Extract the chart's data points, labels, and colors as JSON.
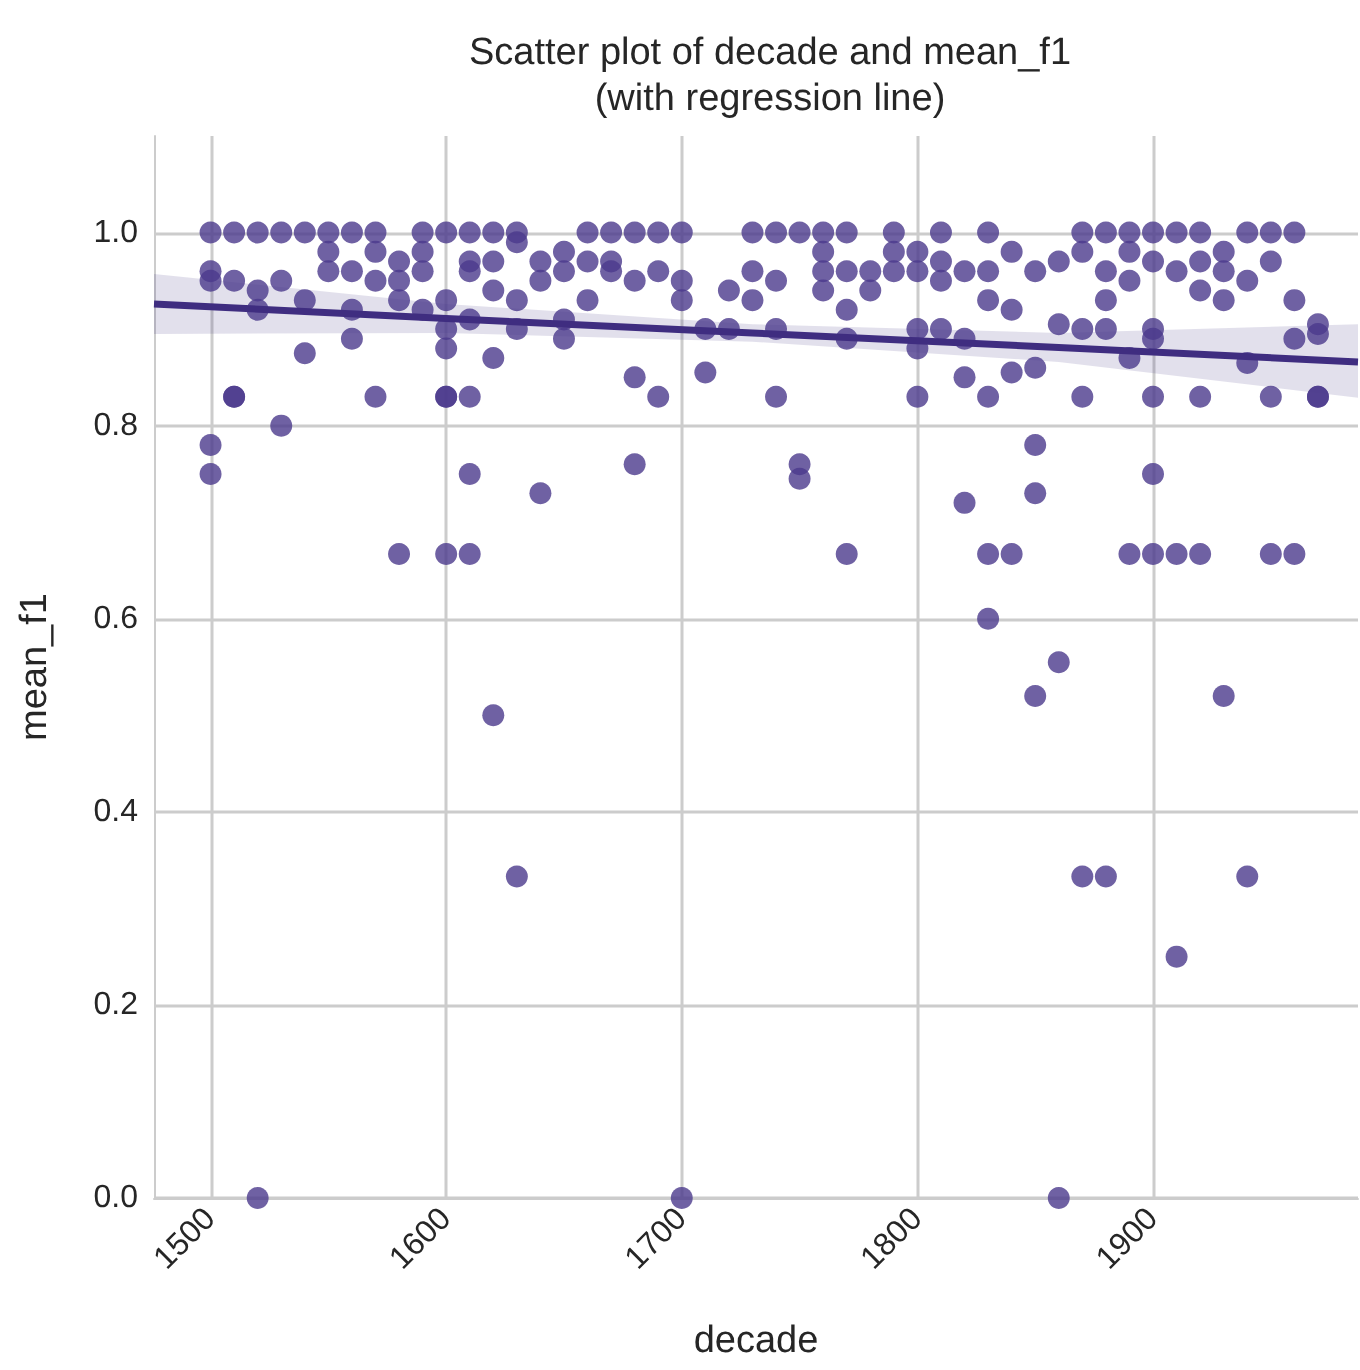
{
  "chart_data": {
    "type": "scatter",
    "title": "Scatter plot of decade and mean_f1\n(with regression line)",
    "xlabel": "decade",
    "ylabel": "mean_f1",
    "xlim": [
      1476,
      1987
    ],
    "ylim": [
      0,
      1.1
    ],
    "xticks": [
      1500,
      1600,
      1700,
      1800,
      1900
    ],
    "yticks": [
      {
        "value": 0,
        "label": "0.0"
      },
      {
        "value": 0.2,
        "label": "0.2"
      },
      {
        "value": 0.4,
        "label": "0.4"
      },
      {
        "value": 0.6,
        "label": "0.6"
      },
      {
        "value": 0.8,
        "label": "0.8"
      },
      {
        "value": 1,
        "label": "1.0"
      }
    ],
    "grid": true,
    "marker": "circle",
    "series": [
      {
        "color": "#4b3a8c",
        "x": [
          1500,
          1500,
          1500,
          1500,
          1500,
          1510,
          1510,
          1510,
          1510,
          1520,
          1520,
          1520,
          1520,
          1530,
          1530,
          1530,
          1540,
          1540,
          1540,
          1550,
          1550,
          1550,
          1560,
          1560,
          1560,
          1560,
          1570,
          1570,
          1570,
          1570,
          1580,
          1580,
          1580,
          1580,
          1590,
          1590,
          1590,
          1590,
          1600,
          1600,
          1600,
          1600,
          1600,
          1600,
          1600,
          1610,
          1610,
          1610,
          1610,
          1610,
          1610,
          1610,
          1620,
          1620,
          1620,
          1620,
          1620,
          1630,
          1630,
          1630,
          1630,
          1630,
          1640,
          1640,
          1640,
          1650,
          1650,
          1650,
          1650,
          1660,
          1660,
          1660,
          1670,
          1670,
          1670,
          1680,
          1680,
          1680,
          1680,
          1690,
          1690,
          1690,
          1700,
          1700,
          1700,
          1700,
          1710,
          1710,
          1720,
          1720,
          1730,
          1730,
          1730,
          1740,
          1740,
          1740,
          1740,
          1750,
          1750,
          1750,
          1760,
          1760,
          1760,
          1760,
          1770,
          1770,
          1770,
          1770,
          1770,
          1780,
          1780,
          1790,
          1790,
          1790,
          1800,
          1800,
          1800,
          1800,
          1800,
          1810,
          1810,
          1810,
          1810,
          1820,
          1820,
          1820,
          1820,
          1830,
          1830,
          1830,
          1830,
          1830,
          1830,
          1840,
          1840,
          1840,
          1840,
          1850,
          1850,
          1850,
          1850,
          1850,
          1860,
          1860,
          1860,
          1860,
          1870,
          1870,
          1870,
          1870,
          1870,
          1880,
          1880,
          1880,
          1880,
          1880,
          1890,
          1890,
          1890,
          1890,
          1890,
          1900,
          1900,
          1900,
          1900,
          1900,
          1900,
          1900,
          1910,
          1910,
          1910,
          1910,
          1920,
          1920,
          1920,
          1920,
          1920,
          1930,
          1930,
          1930,
          1930,
          1940,
          1940,
          1940,
          1940,
          1950,
          1950,
          1950,
          1950,
          1960,
          1960,
          1960,
          1960,
          1970,
          1970,
          1970,
          1970
        ],
        "values": [
          1.0,
          0.96,
          0.95,
          0.78,
          0.75,
          1.0,
          0.95,
          0.83,
          0.83,
          1.0,
          0.94,
          0.92,
          0.0,
          1.0,
          0.95,
          0.8,
          1.0,
          0.93,
          0.875,
          1.0,
          0.98,
          0.96,
          1.0,
          0.96,
          0.92,
          0.89,
          1.0,
          0.98,
          0.95,
          0.83,
          0.97,
          0.95,
          0.93,
          0.667,
          1.0,
          0.98,
          0.96,
          0.92,
          1.0,
          0.93,
          0.9,
          0.88,
          0.83,
          0.83,
          0.667,
          1.0,
          0.97,
          0.96,
          0.91,
          0.83,
          0.75,
          0.667,
          1.0,
          0.97,
          0.94,
          0.87,
          0.5,
          1.0,
          0.99,
          0.93,
          0.9,
          0.333,
          0.97,
          0.95,
          0.73,
          0.98,
          0.96,
          0.91,
          0.89,
          1.0,
          0.97,
          0.93,
          1.0,
          0.97,
          0.96,
          1.0,
          0.95,
          0.85,
          0.76,
          1.0,
          0.96,
          0.83,
          1.0,
          0.95,
          0.93,
          0.0,
          0.9,
          0.855,
          0.94,
          0.9,
          1.0,
          0.96,
          0.93,
          1.0,
          0.95,
          0.9,
          0.83,
          1.0,
          0.76,
          0.745,
          1.0,
          0.98,
          0.96,
          0.94,
          1.0,
          0.96,
          0.92,
          0.89,
          0.667,
          0.96,
          0.94,
          1.0,
          0.98,
          0.96,
          0.98,
          0.96,
          0.9,
          0.88,
          0.83,
          1.0,
          0.97,
          0.95,
          0.9,
          0.96,
          0.89,
          0.85,
          0.72,
          1.0,
          0.96,
          0.93,
          0.83,
          0.667,
          0.6,
          0.98,
          0.92,
          0.855,
          0.667,
          0.96,
          0.86,
          0.78,
          0.73,
          0.52,
          0.97,
          0.905,
          0.555,
          0.0,
          1.0,
          0.98,
          0.9,
          0.83,
          0.333,
          1.0,
          0.96,
          0.93,
          0.9,
          0.333,
          1.0,
          0.98,
          0.95,
          0.87,
          0.667,
          1.0,
          0.97,
          0.9,
          0.89,
          0.83,
          0.75,
          0.667,
          1.0,
          0.96,
          0.667,
          0.25,
          1.0,
          0.97,
          0.94,
          0.83,
          0.667,
          0.98,
          0.96,
          0.93,
          0.52,
          1.0,
          0.95,
          0.865,
          0.333,
          1.0,
          0.97,
          0.83,
          0.667,
          1.0,
          0.93,
          0.89,
          0.667,
          0.905,
          0.895,
          0.83,
          0.83
        ]
      },
      {
        "type": "line",
        "color": "#3f2d80",
        "marker": "none",
        "x": [
          1476,
          1600,
          1730,
          1860,
          1987
        ],
        "values": [
          0.926,
          0.911,
          0.896,
          0.881,
          0.866
        ],
        "lower": [
          0.895,
          0.896,
          0.887,
          0.866,
          0.829
        ],
        "upper": [
          0.957,
          0.926,
          0.905,
          0.896,
          0.905
        ]
      }
    ]
  }
}
